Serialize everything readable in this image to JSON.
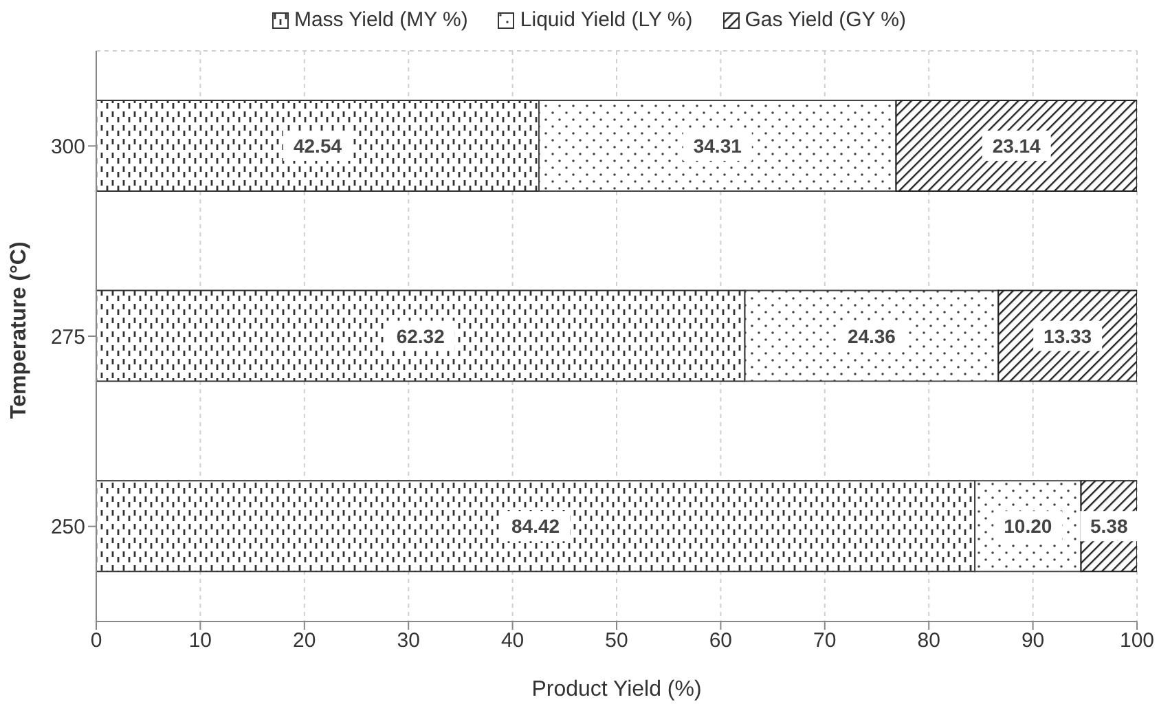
{
  "chart_data": {
    "type": "bar",
    "orientation": "horizontal",
    "stacked": true,
    "categories": [
      "300",
      "275",
      "250"
    ],
    "series": [
      {
        "name": "Mass Yield (MY %)",
        "color": "#333333",
        "values": [
          42.54,
          62.32,
          84.42
        ],
        "value_labels": [
          "42.54",
          "62.32",
          "84.42"
        ]
      },
      {
        "name": "Liquid Yield (LY %)",
        "color": "#444444",
        "values": [
          34.31,
          24.36,
          10.2
        ],
        "value_labels": [
          "34.31",
          "24.36",
          "10.20"
        ]
      },
      {
        "name": "Gas Yield (GY %)",
        "color": "#222222",
        "values": [
          23.14,
          13.33,
          5.38
        ],
        "value_labels": [
          "23.14",
          "13.33",
          "5.38"
        ]
      }
    ],
    "xlim": [
      0,
      100
    ],
    "xticks": [
      0,
      10,
      20,
      30,
      40,
      50,
      60,
      70,
      80,
      90,
      100
    ],
    "xlabel": "Product Yield (%)",
    "ylabel": "Temperature (°C)",
    "grid": true,
    "legend": "top"
  }
}
